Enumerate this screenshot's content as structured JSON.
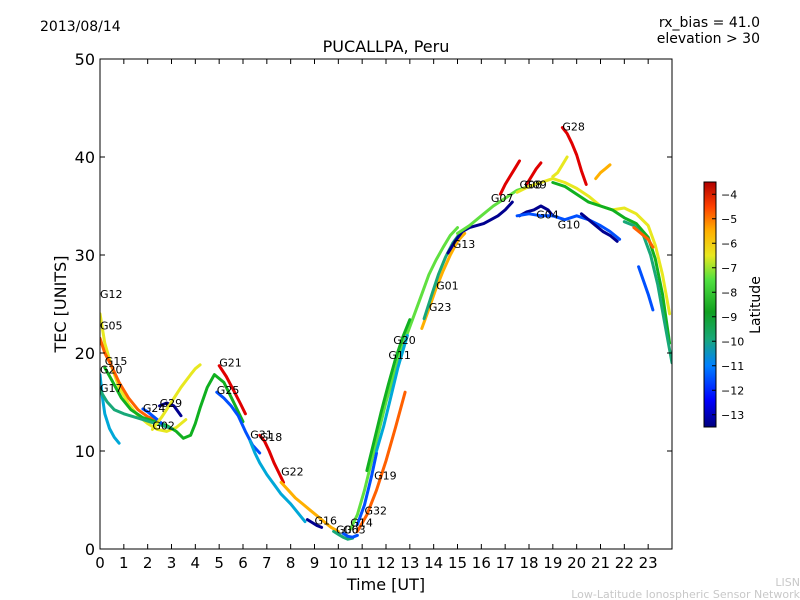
{
  "header": {
    "date": "2013/08/14",
    "title": "PUCALLPA, Peru",
    "param_line1": "rx_bias = 41.0",
    "param_line2": "elevation > 30"
  },
  "footer": {
    "org_short": "LISN",
    "org_full": "Low-Latitude Ionospheric Sensor Network"
  },
  "chart_data": {
    "type": "scatter",
    "title": "PUCALLPA, Peru",
    "xlabel": "Time [UT]",
    "ylabel": "TEC [UNITS]",
    "xlim": [
      0,
      24
    ],
    "ylim": [
      0,
      50
    ],
    "xticks": [
      0,
      1,
      2,
      3,
      4,
      5,
      6,
      7,
      8,
      9,
      10,
      11,
      12,
      13,
      14,
      15,
      16,
      17,
      18,
      19,
      20,
      21,
      22,
      23
    ],
    "yticks": [
      0,
      10,
      20,
      30,
      40,
      50
    ],
    "grid": false,
    "colorbar": {
      "label": "Latitude",
      "ticks": [
        -4,
        -5,
        -6,
        -7,
        -8,
        -9,
        -10,
        -11,
        -12,
        -13
      ],
      "range": [
        -13.5,
        -3.5
      ]
    },
    "colors": {
      "lat_-13": "#00008f",
      "lat_-12": "#0050ff",
      "lat_-11": "#00a8d8",
      "lat_-10": "#18a878",
      "lat_-9": "#10b020",
      "lat_-8": "#60e040",
      "lat_-7": "#e8e820",
      "lat_-6": "#ffb000",
      "lat_-5": "#ff6000",
      "lat_-4": "#e00000"
    },
    "series": [
      {
        "name": "G12",
        "label_at": [
          0.0,
          25.6
        ],
        "lat": -7,
        "x": [
          0.0,
          0.2,
          0.5,
          0.8,
          1.2,
          1.6,
          2.0,
          2.4,
          2.8,
          3.2,
          3.6
        ],
        "y": [
          24.0,
          21.0,
          18.5,
          16.5,
          14.8,
          13.6,
          12.8,
          12.2,
          12.0,
          12.4,
          13.2
        ]
      },
      {
        "name": "G05",
        "label_at": [
          0.0,
          22.4
        ],
        "lat": -5,
        "x": [
          0.0,
          0.2,
          0.5,
          0.8,
          1.2,
          1.6,
          2.0,
          2.5
        ],
        "y": [
          21.5,
          20.0,
          18.6,
          17.0,
          15.4,
          14.2,
          13.5,
          13.0
        ]
      },
      {
        "name": "G15",
        "label_at": [
          0.2,
          18.8
        ],
        "lat": -9,
        "x": [
          0.2,
          0.5,
          0.9,
          1.3,
          1.8,
          2.3,
          2.8,
          3.2,
          3.5,
          3.8,
          4.0,
          4.2,
          4.5,
          4.8,
          5.2,
          5.6,
          6.0
        ],
        "y": [
          18.5,
          17.2,
          15.4,
          14.2,
          13.4,
          13.0,
          12.6,
          12.0,
          11.3,
          11.6,
          12.8,
          14.4,
          16.5,
          17.8,
          17.0,
          15.0,
          13.0
        ]
      },
      {
        "name": "G20",
        "label_at": [
          0.0,
          17.9
        ],
        "lat": -11,
        "x": [
          0.0,
          0.1,
          0.2,
          0.4,
          0.6,
          0.8
        ],
        "y": [
          17.8,
          15.5,
          13.8,
          12.3,
          11.4,
          10.8
        ]
      },
      {
        "name": "G17",
        "label_at": [
          0.0,
          16.0
        ],
        "lat": -10,
        "x": [
          0.0,
          0.3,
          0.6,
          1.0,
          1.4,
          1.8,
          2.2,
          2.6,
          3.0
        ],
        "y": [
          16.2,
          15.0,
          14.2,
          13.8,
          13.5,
          13.2,
          12.9,
          12.6,
          12.3
        ]
      },
      {
        "name": "G24",
        "label_at": [
          1.8,
          14.0
        ],
        "lat": -12,
        "x": [
          1.8,
          2.0,
          2.2,
          2.4,
          2.6
        ],
        "y": [
          14.3,
          14.0,
          13.6,
          13.2,
          12.8
        ]
      },
      {
        "name": "G29",
        "label_at": [
          2.5,
          14.5
        ],
        "lat": -13,
        "x": [
          2.5,
          2.8,
          3.1,
          3.4
        ],
        "y": [
          14.6,
          14.9,
          14.6,
          13.6
        ]
      },
      {
        "name": "G02",
        "label_at": [
          2.2,
          12.2
        ],
        "lat": -7,
        "x": [
          2.2,
          2.6,
          3.0,
          3.4,
          3.8,
          4.0,
          4.2
        ],
        "y": [
          12.2,
          13.5,
          15.0,
          16.5,
          17.8,
          18.4,
          18.8
        ]
      },
      {
        "name": "G21",
        "label_at": [
          5.0,
          18.6
        ],
        "lat": -4,
        "x": [
          5.0,
          5.3,
          5.6,
          5.9,
          6.1
        ],
        "y": [
          18.7,
          17.6,
          16.2,
          14.8,
          13.8
        ]
      },
      {
        "name": "G25",
        "label_at": [
          4.9,
          15.8
        ],
        "lat": -12,
        "x": [
          4.9,
          5.2,
          5.5,
          5.8,
          6.1,
          6.4,
          6.7
        ],
        "y": [
          16.0,
          15.4,
          14.6,
          13.6,
          12.0,
          10.6,
          9.8
        ]
      },
      {
        "name": "G31",
        "label_at": [
          6.3,
          11.3
        ],
        "lat": -11,
        "x": [
          6.3,
          6.5,
          6.7,
          7.0,
          7.3,
          7.6,
          8.0,
          8.4,
          8.6
        ],
        "y": [
          11.0,
          9.8,
          8.8,
          7.6,
          6.6,
          5.6,
          4.6,
          3.4,
          2.8
        ]
      },
      {
        "name": "G18",
        "label_at": [
          6.7,
          11.0
        ],
        "lat": -4,
        "x": [
          6.7,
          6.9,
          7.1,
          7.3,
          7.5,
          7.7
        ],
        "y": [
          11.6,
          11.0,
          10.0,
          8.8,
          7.8,
          6.8
        ]
      },
      {
        "name": "G22",
        "label_at": [
          7.6,
          7.5
        ],
        "lat": -6,
        "x": [
          7.6,
          7.9,
          8.2,
          8.5,
          8.8,
          9.1,
          9.4,
          9.7,
          10.0
        ],
        "y": [
          6.8,
          6.0,
          5.2,
          4.6,
          4.0,
          3.4,
          2.8,
          2.2,
          1.8
        ]
      },
      {
        "name": "G16",
        "label_at": [
          9.0,
          2.5
        ],
        "lat": -13,
        "x": [
          8.7,
          8.9,
          9.1,
          9.3
        ],
        "y": [
          3.0,
          2.7,
          2.4,
          2.2
        ]
      },
      {
        "name": "G06",
        "label_at": [
          9.9,
          1.6
        ],
        "lat": -10,
        "x": [
          9.8,
          10.0,
          10.2,
          10.4,
          10.6
        ],
        "y": [
          1.8,
          1.5,
          1.2,
          1.0,
          1.1
        ]
      },
      {
        "name": "G03",
        "label_at": [
          10.2,
          1.6
        ],
        "lat": -12,
        "x": [
          10.2,
          10.4,
          10.6,
          10.8
        ],
        "y": [
          1.6,
          1.3,
          1.2,
          1.4
        ]
      },
      {
        "name": "G14",
        "label_at": [
          10.5,
          2.3
        ],
        "lat": -8,
        "x": [
          10.5,
          10.8,
          11.1,
          11.4,
          11.7,
          12.0,
          12.3,
          12.6,
          12.9,
          13.2,
          13.5,
          13.8,
          14.1,
          14.4,
          14.7,
          15.0
        ],
        "y": [
          2.0,
          3.5,
          6.0,
          9.0,
          12.0,
          15.0,
          17.5,
          20.0,
          22.0,
          24.0,
          26.0,
          28.0,
          29.5,
          30.8,
          32.0,
          32.8
        ]
      },
      {
        "name": "G32",
        "label_at": [
          11.1,
          3.5
        ],
        "lat": -5,
        "x": [
          10.8,
          11.2,
          11.6,
          12.0,
          12.4,
          12.8
        ],
        "y": [
          1.8,
          3.5,
          6.0,
          9.0,
          12.4,
          16.0
        ]
      },
      {
        "name": "G19",
        "label_at": [
          11.5,
          7.1
        ],
        "lat": -12,
        "x": [
          10.8,
          11.1,
          11.4,
          11.6
        ],
        "y": [
          2.5,
          4.5,
          7.5,
          9.8
        ]
      },
      {
        "name": "G11",
        "label_at": [
          12.1,
          19.4
        ],
        "lat": -11,
        "x": [
          11.6,
          11.9,
          12.2,
          12.5,
          12.8,
          12.9
        ],
        "y": [
          10.0,
          12.5,
          15.5,
          18.5,
          21.0,
          21.8
        ]
      },
      {
        "name": "G20",
        "label_at": [
          12.3,
          20.9
        ],
        "lat": -9,
        "x": [
          11.2,
          11.5,
          11.8,
          12.1,
          12.4,
          12.7,
          13.0
        ],
        "y": [
          8.0,
          11.0,
          14.0,
          16.8,
          19.4,
          21.6,
          23.4
        ]
      },
      {
        "name": "G23",
        "label_at": [
          13.8,
          24.3
        ],
        "lat": -6,
        "x": [
          13.5,
          13.8,
          14.1,
          14.4,
          14.7,
          15.0,
          15.3
        ],
        "y": [
          22.5,
          24.5,
          26.6,
          28.4,
          30.0,
          31.4,
          32.2
        ]
      },
      {
        "name": "G01",
        "label_at": [
          14.1,
          26.5
        ],
        "lat": -10,
        "x": [
          13.6,
          13.9,
          14.2,
          14.5,
          14.8,
          15.1,
          15.4
        ],
        "y": [
          23.5,
          25.8,
          28.0,
          29.8,
          31.2,
          32.2,
          32.8
        ]
      },
      {
        "name": "G13",
        "label_at": [
          14.8,
          30.7
        ],
        "lat": -13,
        "x": [
          14.6,
          14.9,
          15.2,
          15.5,
          15.8,
          16.1,
          16.4,
          16.7,
          17.0,
          17.3
        ],
        "y": [
          30.2,
          31.4,
          32.4,
          32.8,
          33.0,
          33.2,
          33.6,
          34.0,
          34.6,
          35.4
        ]
      },
      {
        "name": "G07",
        "label_at": [
          16.4,
          35.4
        ],
        "lat": -8,
        "x": [
          15.0,
          15.5,
          16.0,
          16.5,
          17.0,
          17.5,
          18.0,
          18.5
        ],
        "y": [
          32.2,
          33.0,
          34.0,
          35.0,
          35.8,
          36.6,
          37.0,
          37.4
        ]
      },
      {
        "name": "G08",
        "label_at": [
          17.6,
          36.8
        ],
        "lat": -4,
        "x": [
          16.8,
          17.0,
          17.2,
          17.4,
          17.6
        ],
        "y": [
          36.2,
          37.2,
          38.0,
          38.8,
          39.6
        ]
      },
      {
        "name": "G09",
        "label_at": [
          17.8,
          36.8
        ],
        "lat": -4,
        "x": [
          17.9,
          18.1,
          18.3,
          18.5
        ],
        "y": [
          37.2,
          38.0,
          38.8,
          39.4
        ]
      },
      {
        "name": "G04",
        "label_at": [
          18.3,
          33.7
        ],
        "lat": -13,
        "x": [
          17.6,
          17.9,
          18.2,
          18.5,
          18.8,
          19.0
        ],
        "y": [
          34.0,
          34.4,
          34.6,
          35.0,
          34.6,
          34.0
        ]
      },
      {
        "name": "G10",
        "label_at": [
          19.2,
          32.7
        ],
        "lat": -12,
        "x": [
          17.5,
          18.0,
          18.5,
          19.0,
          19.5,
          20.0,
          20.5,
          21.0,
          21.4,
          21.8
        ],
        "y": [
          34.0,
          34.2,
          34.0,
          34.0,
          33.6,
          34.0,
          33.6,
          33.0,
          32.4,
          31.6
        ]
      },
      {
        "name": "G28",
        "label_at": [
          19.4,
          42.7
        ],
        "lat": -4,
        "x": [
          19.4,
          19.6,
          19.8,
          20.0,
          20.2,
          20.4
        ],
        "y": [
          43.0,
          42.4,
          41.4,
          40.2,
          38.6,
          37.2
        ]
      },
      {
        "name": "",
        "label_at": [
          0,
          0
        ],
        "lat": -7,
        "x": [
          17.5,
          18.0,
          18.5,
          19.0,
          19.5,
          20.0,
          20.5,
          21.0,
          21.5,
          22.0,
          22.5,
          23.0,
          23.3,
          23.6,
          23.9
        ],
        "y": [
          36.4,
          37.0,
          37.4,
          37.8,
          37.4,
          36.8,
          36.0,
          35.0,
          34.6,
          34.8,
          34.2,
          33.0,
          31.0,
          28.0,
          24.0
        ]
      },
      {
        "name": "",
        "label_at": [
          0,
          0
        ],
        "lat": -9,
        "x": [
          19.0,
          19.5,
          20.0,
          20.5,
          21.0,
          21.5,
          22.0,
          22.5,
          23.0,
          23.3,
          23.6,
          23.9
        ],
        "y": [
          37.4,
          37.0,
          36.2,
          35.4,
          35.0,
          34.6,
          33.8,
          33.2,
          31.8,
          29.6,
          26.0,
          21.0
        ]
      },
      {
        "name": "",
        "label_at": [
          0,
          0
        ],
        "lat": -10,
        "x": [
          22.0,
          22.4,
          22.8,
          23.1,
          23.4,
          23.7,
          24.0
        ],
        "y": [
          33.4,
          33.0,
          32.0,
          30.0,
          27.0,
          23.0,
          19.0
        ]
      },
      {
        "name": "",
        "label_at": [
          0,
          0
        ],
        "lat": -12,
        "x": [
          22.6,
          22.8,
          23.0,
          23.2
        ],
        "y": [
          28.8,
          27.4,
          26.0,
          24.4
        ]
      },
      {
        "name": "",
        "label_at": [
          0,
          0
        ],
        "lat": -5,
        "x": [
          22.4,
          22.7,
          23.0,
          23.2
        ],
        "y": [
          32.8,
          32.2,
          31.6,
          30.8
        ]
      },
      {
        "name": "",
        "label_at": [
          0,
          0
        ],
        "lat": -7,
        "x": [
          19.0,
          19.2,
          19.4,
          19.6
        ],
        "y": [
          38.0,
          38.4,
          39.2,
          40.0
        ]
      },
      {
        "name": "",
        "label_at": [
          0,
          0
        ],
        "lat": -6,
        "x": [
          20.8,
          21.0,
          21.2,
          21.4
        ],
        "y": [
          37.8,
          38.4,
          38.8,
          39.2
        ]
      },
      {
        "name": "",
        "label_at": [
          0,
          0
        ],
        "lat": -13,
        "x": [
          20.2,
          20.5,
          20.8,
          21.1,
          21.4,
          21.7
        ],
        "y": [
          34.2,
          33.6,
          33.0,
          32.4,
          32.0,
          31.4
        ]
      }
    ]
  }
}
